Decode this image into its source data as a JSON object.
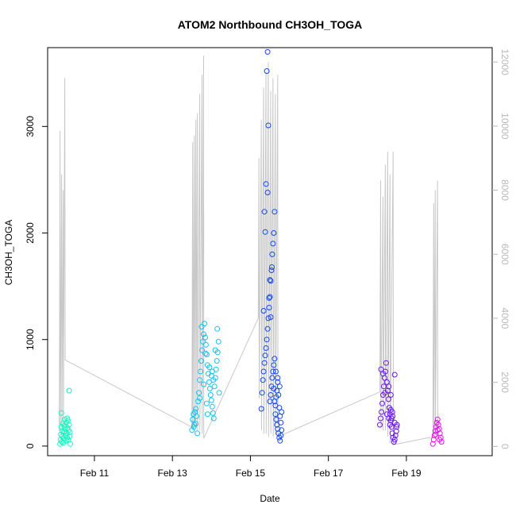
{
  "chart_data": {
    "type": "scatter",
    "title": "ATOM2 Northbound CH3OH_TOGA",
    "xlabel": "Date",
    "ylabel": "CH3OH_TOGA",
    "x_unit": "days since Feb 10 00:00",
    "xlim": [
      9.8,
      21.2
    ],
    "ylim": [
      -90,
      3740
    ],
    "y2lim": [
      -290,
      12450
    ],
    "x_ticks": [
      {
        "value": 11,
        "label": "Feb 11"
      },
      {
        "value": 13,
        "label": "Feb 13"
      },
      {
        "value": 15,
        "label": "Feb 15"
      },
      {
        "value": 17,
        "label": "Feb 17"
      },
      {
        "value": 19,
        "label": "Feb 19"
      }
    ],
    "y_ticks": [
      0,
      1000,
      2000,
      3000
    ],
    "y2_ticks": [
      0,
      2000,
      4000,
      6000,
      8000,
      10000,
      12000
    ],
    "grid": false,
    "legend": "none",
    "colors": {
      "line": "#c8c8c8",
      "axis": "#000000",
      "axis_right": "#b8b8b8"
    },
    "series": [
      {
        "color": "#19f5c0",
        "points": [
          [
            10.12,
            20
          ],
          [
            10.13,
            60
          ],
          [
            10.14,
            110
          ],
          [
            10.15,
            180
          ],
          [
            10.16,
            40
          ],
          [
            10.17,
            90
          ],
          [
            10.18,
            140
          ],
          [
            10.19,
            210
          ],
          [
            10.2,
            30
          ],
          [
            10.21,
            70
          ],
          [
            10.22,
            130
          ],
          [
            10.23,
            190
          ],
          [
            10.24,
            250
          ],
          [
            10.25,
            160
          ],
          [
            10.26,
            100
          ],
          [
            10.27,
            50
          ],
          [
            10.28,
            220
          ],
          [
            10.29,
            120
          ],
          [
            10.3,
            80
          ],
          [
            10.31,
            170
          ],
          [
            10.32,
            240
          ],
          [
            10.33,
            60
          ],
          [
            10.34,
            150
          ],
          [
            10.35,
            200
          ],
          [
            10.36,
            90
          ],
          [
            10.37,
            130
          ],
          [
            10.38,
            20
          ],
          [
            10.15,
            310
          ],
          [
            10.3,
            260
          ],
          [
            10.35,
            520
          ]
        ]
      },
      {
        "color": "#18c0ee",
        "points": [
          [
            13.5,
            150
          ],
          [
            13.52,
            250
          ],
          [
            13.54,
            300
          ],
          [
            13.56,
            200
          ],
          [
            13.58,
            320
          ],
          [
            13.6,
            350
          ],
          [
            13.62,
            280
          ],
          [
            13.64,
            120
          ],
          [
            13.66,
            420
          ],
          [
            13.68,
            500
          ],
          [
            13.7,
            620
          ],
          [
            13.72,
            700
          ],
          [
            13.74,
            800
          ],
          [
            13.76,
            900
          ],
          [
            13.78,
            980
          ],
          [
            13.8,
            1050
          ],
          [
            13.82,
            1150
          ],
          [
            13.84,
            1020
          ],
          [
            13.86,
            950
          ],
          [
            13.88,
            860
          ],
          [
            13.9,
            760
          ],
          [
            13.92,
            680
          ],
          [
            13.94,
            600
          ],
          [
            13.96,
            540
          ],
          [
            13.98,
            480
          ],
          [
            14.0,
            430
          ],
          [
            14.02,
            370
          ],
          [
            14.04,
            310
          ],
          [
            14.06,
            260
          ],
          [
            14.08,
            560
          ],
          [
            14.1,
            640
          ],
          [
            14.12,
            720
          ],
          [
            14.14,
            800
          ],
          [
            14.16,
            880
          ],
          [
            14.18,
            980
          ],
          [
            13.75,
            1120
          ],
          [
            13.85,
            870
          ],
          [
            13.9,
            300
          ],
          [
            14.0,
            660
          ],
          [
            14.1,
            900
          ],
          [
            13.8,
            580
          ],
          [
            13.95,
            740
          ],
          [
            14.05,
            620
          ],
          [
            14.15,
            1100
          ],
          [
            14.2,
            500
          ],
          [
            13.7,
            450
          ],
          [
            13.88,
            400
          ],
          [
            14.02,
            700
          ],
          [
            13.6,
            210
          ],
          [
            13.55,
            180
          ]
        ]
      },
      {
        "color": "#1448f2",
        "points": [
          [
            15.28,
            350
          ],
          [
            15.3,
            500
          ],
          [
            15.32,
            620
          ],
          [
            15.34,
            700
          ],
          [
            15.36,
            780
          ],
          [
            15.38,
            850
          ],
          [
            15.4,
            920
          ],
          [
            15.42,
            1000
          ],
          [
            15.44,
            1100
          ],
          [
            15.46,
            1200
          ],
          [
            15.48,
            1300
          ],
          [
            15.5,
            1400
          ],
          [
            15.52,
            1550
          ],
          [
            15.54,
            1650
          ],
          [
            15.56,
            1800
          ],
          [
            15.58,
            1900
          ],
          [
            15.6,
            2000
          ],
          [
            15.62,
            2200
          ],
          [
            15.4,
            2460
          ],
          [
            15.44,
            2380
          ],
          [
            15.36,
            2200
          ],
          [
            15.38,
            2010
          ],
          [
            15.46,
            3010
          ],
          [
            15.42,
            3520
          ],
          [
            15.44,
            3700
          ],
          [
            15.5,
            1560
          ],
          [
            15.55,
            1680
          ],
          [
            15.48,
            1390
          ],
          [
            15.52,
            1210
          ],
          [
            15.34,
            1270
          ],
          [
            15.5,
            420
          ],
          [
            15.52,
            480
          ],
          [
            15.54,
            560
          ],
          [
            15.56,
            640
          ],
          [
            15.58,
            700
          ],
          [
            15.6,
            760
          ],
          [
            15.62,
            820
          ],
          [
            15.64,
            300
          ],
          [
            15.66,
            250
          ],
          [
            15.68,
            200
          ],
          [
            15.7,
            160
          ],
          [
            15.72,
            120
          ],
          [
            15.74,
            80
          ],
          [
            15.76,
            50
          ],
          [
            15.78,
            100
          ],
          [
            15.8,
            150
          ],
          [
            15.6,
            540
          ],
          [
            15.62,
            420
          ],
          [
            15.64,
            380
          ],
          [
            15.66,
            460
          ],
          [
            15.68,
            520
          ],
          [
            15.7,
            600
          ],
          [
            15.72,
            480
          ],
          [
            15.74,
            360
          ],
          [
            15.76,
            280
          ],
          [
            15.78,
            220
          ],
          [
            15.8,
            320
          ],
          [
            15.65,
            700
          ],
          [
            15.7,
            640
          ],
          [
            15.75,
            560
          ]
        ]
      },
      {
        "color": "#6a14ee",
        "points": [
          [
            18.32,
            200
          ],
          [
            18.34,
            260
          ],
          [
            18.36,
            320
          ],
          [
            18.38,
            400
          ],
          [
            18.4,
            480
          ],
          [
            18.42,
            560
          ],
          [
            18.44,
            640
          ],
          [
            18.46,
            700
          ],
          [
            18.48,
            780
          ],
          [
            18.5,
            600
          ],
          [
            18.52,
            520
          ],
          [
            18.54,
            440
          ],
          [
            18.56,
            360
          ],
          [
            18.58,
            300
          ],
          [
            18.6,
            240
          ],
          [
            18.62,
            180
          ],
          [
            18.64,
            120
          ],
          [
            18.66,
            80
          ],
          [
            18.68,
            40
          ],
          [
            18.7,
            60
          ],
          [
            18.72,
            100
          ],
          [
            18.74,
            140
          ],
          [
            18.76,
            200
          ],
          [
            18.5,
            300
          ],
          [
            18.55,
            260
          ],
          [
            18.6,
            340
          ],
          [
            18.65,
            280
          ],
          [
            18.7,
            220
          ],
          [
            18.75,
            180
          ],
          [
            18.45,
            500
          ],
          [
            18.4,
            680
          ],
          [
            18.35,
            720
          ],
          [
            18.55,
            560
          ],
          [
            18.6,
            480
          ],
          [
            18.7,
            670
          ],
          [
            18.58,
            200
          ],
          [
            18.62,
            260
          ],
          [
            18.64,
            320
          ]
        ]
      },
      {
        "color": "#e414e8",
        "points": [
          [
            19.68,
            20
          ],
          [
            19.7,
            60
          ],
          [
            19.72,
            100
          ],
          [
            19.74,
            140
          ],
          [
            19.76,
            180
          ],
          [
            19.78,
            220
          ],
          [
            19.8,
            250
          ],
          [
            19.82,
            200
          ],
          [
            19.84,
            160
          ],
          [
            19.86,
            120
          ],
          [
            19.88,
            80
          ],
          [
            19.9,
            40
          ],
          [
            19.75,
            110
          ],
          [
            19.8,
            150
          ],
          [
            19.85,
            60
          ]
        ]
      }
    ],
    "line_y2": [
      [
        10.1,
        480
      ],
      [
        10.12,
        9850
      ],
      [
        10.125,
        400
      ],
      [
        10.16,
        8500
      ],
      [
        10.165,
        300
      ],
      [
        10.2,
        8000
      ],
      [
        10.205,
        500
      ],
      [
        10.24,
        11500
      ],
      [
        10.25,
        2700
      ],
      [
        13.5,
        600
      ],
      [
        13.52,
        9500
      ],
      [
        13.525,
        500
      ],
      [
        13.56,
        9700
      ],
      [
        13.565,
        600
      ],
      [
        13.6,
        10200
      ],
      [
        13.605,
        700
      ],
      [
        13.64,
        10400
      ],
      [
        13.645,
        500
      ],
      [
        13.7,
        11000
      ],
      [
        13.705,
        500
      ],
      [
        13.76,
        11600
      ],
      [
        13.765,
        400
      ],
      [
        13.8,
        12200
      ],
      [
        13.805,
        250
      ],
      [
        15.2,
        4000
      ],
      [
        15.22,
        9000
      ],
      [
        15.225,
        1500
      ],
      [
        15.28,
        10200
      ],
      [
        15.285,
        500
      ],
      [
        15.34,
        11200
      ],
      [
        15.345,
        400
      ],
      [
        15.4,
        11700
      ],
      [
        15.405,
        400
      ],
      [
        15.46,
        12000
      ],
      [
        15.465,
        300
      ],
      [
        15.52,
        11100
      ],
      [
        15.525,
        400
      ],
      [
        15.58,
        11500
      ],
      [
        15.585,
        300
      ],
      [
        15.64,
        11000
      ],
      [
        15.645,
        350
      ],
      [
        15.7,
        11600
      ],
      [
        15.705,
        300
      ],
      [
        18.32,
        1700
      ],
      [
        18.34,
        8300
      ],
      [
        18.345,
        600
      ],
      [
        18.4,
        7800
      ],
      [
        18.405,
        500
      ],
      [
        18.46,
        8800
      ],
      [
        18.465,
        500
      ],
      [
        18.52,
        9200
      ],
      [
        18.525,
        300
      ],
      [
        18.58,
        8500
      ],
      [
        18.585,
        100
      ],
      [
        18.66,
        9200
      ],
      [
        18.665,
        50
      ],
      [
        19.68,
        300
      ],
      [
        19.7,
        7600
      ],
      [
        19.705,
        400
      ],
      [
        19.74,
        8000
      ],
      [
        19.745,
        500
      ],
      [
        19.8,
        8300
      ],
      [
        19.805,
        400
      ]
    ]
  }
}
